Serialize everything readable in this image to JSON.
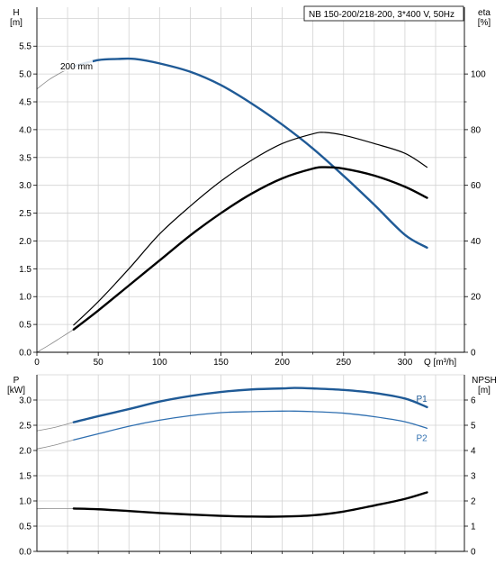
{
  "title": "NB 150-200/218-200, 3*400 V, 50Hz",
  "colors": {
    "blue": "#1f5a96",
    "blue_light": "#2f6fb0",
    "grid": "#d2d2d2",
    "black": "#000000",
    "thin_gray": "#8a8a8a"
  },
  "chart_data": [
    {
      "id": "head_efficiency",
      "type": "line",
      "xlabel": "Q [m³/h]",
      "ylabel": "H\n[m]",
      "y2label": "eta\n[%]",
      "xlim": [
        0,
        325
      ],
      "ylim": [
        0,
        6.2
      ],
      "y2lim": [
        0,
        124
      ],
      "x_ticks": [
        "0",
        "50",
        "100",
        "150",
        "200",
        "250",
        "300"
      ],
      "y_ticks": [
        "0.0",
        "0.5",
        "1.0",
        "1.5",
        "2.0",
        "2.5",
        "3.0",
        "3.5",
        "4.0",
        "4.5",
        "5.0",
        "5.5"
      ],
      "y2_ticks": [
        "0",
        "20",
        "40",
        "60",
        "80",
        "100"
      ],
      "grid": true,
      "annotations": [
        "200 mm"
      ],
      "series": [
        {
          "role": "head",
          "axis": "left",
          "style": "thick-blue",
          "x": [
            30,
            50,
            66,
            80,
            100,
            125,
            150,
            175,
            200,
            225,
            250,
            275,
            300,
            318
          ],
          "y": [
            5.14,
            5.25,
            5.27,
            5.27,
            5.19,
            5.04,
            4.8,
            4.47,
            4.09,
            3.66,
            3.17,
            2.65,
            2.11,
            1.88
          ]
        },
        {
          "role": "head-extrapolated",
          "axis": "left",
          "style": "thin-gray",
          "x": [
            0,
            10,
            20,
            30
          ],
          "y": [
            4.73,
            4.9,
            5.03,
            5.14
          ]
        },
        {
          "role": "efficiency-upper",
          "axis": "right",
          "style": "medium-black",
          "x": [
            30,
            50,
            75,
            100,
            125,
            150,
            175,
            200,
            225,
            235,
            250,
            275,
            300,
            318
          ],
          "y": [
            9.8,
            18.2,
            30.0,
            42.5,
            52.5,
            61.5,
            69.0,
            75.0,
            78.5,
            79.0,
            78.0,
            75.0,
            71.5,
            66.5
          ]
        },
        {
          "role": "efficiency-lower",
          "axis": "right",
          "style": "thick-black",
          "x": [
            30,
            50,
            75,
            100,
            125,
            150,
            175,
            200,
            225,
            235,
            250,
            275,
            300,
            318
          ],
          "y": [
            8.2,
            15.0,
            24.0,
            33.0,
            42.0,
            50.0,
            57.0,
            62.5,
            66.0,
            66.5,
            66.0,
            63.5,
            59.5,
            55.5
          ]
        },
        {
          "role": "efficiency-extrapolated",
          "axis": "right",
          "style": "thin-gray",
          "x": [
            0,
            10,
            20,
            30
          ],
          "y": [
            0,
            2.6,
            5.4,
            8.2
          ]
        }
      ]
    },
    {
      "id": "power_npsh",
      "type": "line",
      "ylabel": "P\n[kW]",
      "y2label": "NPSH\n[m]",
      "xlim": [
        0,
        325
      ],
      "ylim": [
        0,
        3.5
      ],
      "y2lim": [
        0,
        7
      ],
      "y_ticks": [
        "0.0",
        "0.5",
        "1.0",
        "1.5",
        "2.0",
        "2.5",
        "3.0"
      ],
      "y2_ticks": [
        "0",
        "1",
        "2",
        "3",
        "4",
        "5",
        "6"
      ],
      "grid": true,
      "series": [
        {
          "name": "P1",
          "axis": "left",
          "style": "thick-blue",
          "x": [
            30,
            50,
            75,
            100,
            125,
            150,
            175,
            200,
            210,
            225,
            250,
            275,
            300,
            318
          ],
          "y": [
            2.56,
            2.68,
            2.82,
            2.97,
            3.08,
            3.16,
            3.21,
            3.23,
            3.24,
            3.23,
            3.2,
            3.14,
            3.03,
            2.86
          ]
        },
        {
          "name": "P2",
          "axis": "left",
          "style": "medium-blue",
          "x": [
            30,
            50,
            75,
            100,
            125,
            150,
            175,
            200,
            210,
            225,
            250,
            275,
            300,
            318
          ],
          "y": [
            2.21,
            2.33,
            2.48,
            2.6,
            2.69,
            2.75,
            2.77,
            2.78,
            2.78,
            2.77,
            2.74,
            2.67,
            2.57,
            2.44
          ]
        },
        {
          "role": "P1-extrapolated",
          "axis": "left",
          "style": "thin-gray",
          "x": [
            0,
            15,
            30
          ],
          "y": [
            2.39,
            2.46,
            2.56
          ]
        },
        {
          "role": "P2-extrapolated",
          "axis": "left",
          "style": "thin-gray",
          "x": [
            0,
            15,
            30
          ],
          "y": [
            2.03,
            2.11,
            2.21
          ]
        },
        {
          "role": "npsh",
          "axis": "right",
          "style": "thick-black",
          "x": [
            30,
            50,
            75,
            100,
            125,
            150,
            175,
            200,
            225,
            250,
            275,
            300,
            318
          ],
          "y": [
            1.7,
            1.67,
            1.6,
            1.52,
            1.46,
            1.41,
            1.38,
            1.38,
            1.43,
            1.58,
            1.82,
            2.08,
            2.34
          ]
        },
        {
          "role": "npsh-extrapolated",
          "axis": "right",
          "style": "thin-gray",
          "x": [
            0,
            15,
            30
          ],
          "y": [
            1.69,
            1.7,
            1.7
          ]
        }
      ]
    }
  ]
}
